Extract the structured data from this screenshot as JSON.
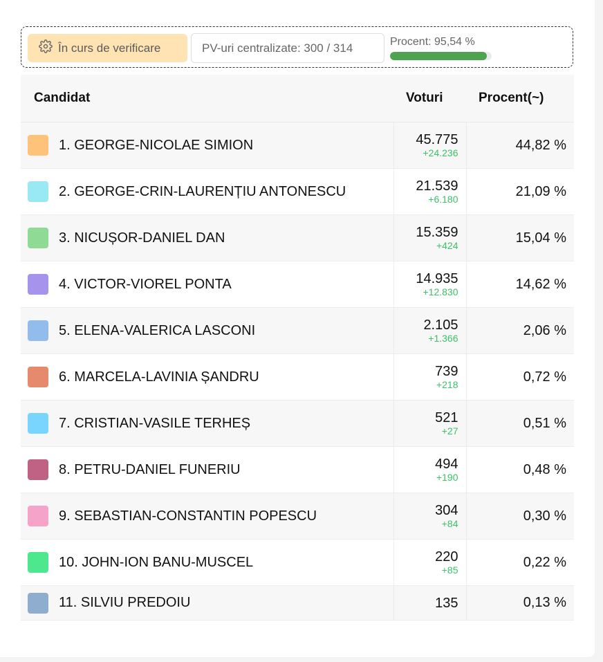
{
  "status": {
    "badge_label": "În curs de verificare",
    "pv_label": "PV-uri centralizate: 300 / 314",
    "percent_label": "Procent: 95,54 %",
    "percent_value": 95.54,
    "colors": {
      "badge_bg": "#ffe3b3",
      "progress": "#4ea34f"
    }
  },
  "table": {
    "headers": {
      "candidate": "Candidat",
      "votes": "Voturi",
      "percent": "Procent(~)"
    },
    "rows": [
      {
        "name": "1. GEORGE-NICOLAE SIMION",
        "votes": "45.775",
        "delta": "+24.236",
        "percent": "44,82 %",
        "color": "#fec27a"
      },
      {
        "name": "2. GEORGE-CRIN-LAURENȚIU ANTONESCU",
        "votes": "21.539",
        "delta": "+6.180",
        "percent": "21,09 %",
        "color": "#98e9f4"
      },
      {
        "name": "3. NICUȘOR-DANIEL DAN",
        "votes": "15.359",
        "delta": "+424",
        "percent": "15,04 %",
        "color": "#8fdb96"
      },
      {
        "name": "4. VICTOR-VIOREL PONTA",
        "votes": "14.935",
        "delta": "+12.830",
        "percent": "14,62 %",
        "color": "#a693ec"
      },
      {
        "name": "5. ELENA-VALERICA LASCONI",
        "votes": "2.105",
        "delta": "+1.366",
        "percent": "2,06 %",
        "color": "#92bcec"
      },
      {
        "name": "6. MARCELA-LAVINIA ȘANDRU",
        "votes": "739",
        "delta": "+218",
        "percent": "0,72 %",
        "color": "#e58a6d"
      },
      {
        "name": "7. CRISTIAN-VASILE TERHEȘ",
        "votes": "521",
        "delta": "+27",
        "percent": "0,51 %",
        "color": "#79d5fe"
      },
      {
        "name": "8. PETRU-DANIEL FUNERIU",
        "votes": "494",
        "delta": "+190",
        "percent": "0,48 %",
        "color": "#c06283"
      },
      {
        "name": "9. SEBASTIAN-CONSTANTIN POPESCU",
        "votes": "304",
        "delta": "+84",
        "percent": "0,30 %",
        "color": "#f5a3c8"
      },
      {
        "name": "10. JOHN-ION BANU-MUSCEL",
        "votes": "220",
        "delta": "+85",
        "percent": "0,22 %",
        "color": "#4de88e"
      },
      {
        "name": "11. SILVIU PREDOIU",
        "votes": "135",
        "delta": "",
        "percent": "0,13 %",
        "color": "#8fadce"
      }
    ]
  }
}
